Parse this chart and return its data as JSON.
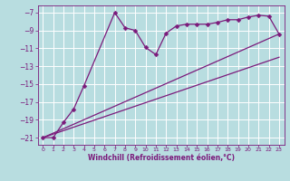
{
  "xlabel": "Windchill (Refroidissement éolien,°C)",
  "xlim": [
    -0.5,
    23.5
  ],
  "ylim": [
    -21.8,
    -6.2
  ],
  "xticks": [
    0,
    1,
    2,
    3,
    4,
    5,
    6,
    7,
    8,
    9,
    10,
    11,
    12,
    13,
    14,
    15,
    16,
    17,
    18,
    19,
    20,
    21,
    22,
    23
  ],
  "yticks": [
    -21,
    -19,
    -17,
    -15,
    -13,
    -11,
    -9,
    -7
  ],
  "bg_color": "#b8dde0",
  "grid_color": "#ffffff",
  "line_color": "#7b1a7b",
  "main_x": [
    0,
    1,
    2,
    3,
    4,
    7,
    8,
    9,
    10,
    11,
    12,
    13,
    14,
    15,
    16,
    17,
    18,
    19,
    20,
    21,
    22,
    23
  ],
  "main_y": [
    -21,
    -21,
    -19.3,
    -17.8,
    -15.2,
    -7.0,
    -8.7,
    -9.0,
    -10.9,
    -11.7,
    -9.3,
    -8.5,
    -8.3,
    -8.3,
    -8.3,
    -8.1,
    -7.8,
    -7.8,
    -7.5,
    -7.3,
    -7.4,
    -9.4
  ],
  "upper_line_x": [
    0,
    3,
    23
  ],
  "upper_line_y": [
    -21,
    -19.5,
    -9.4
  ],
  "lower_line_x": [
    0,
    23
  ],
  "lower_line_y": [
    -21,
    -12.0
  ],
  "markersize": 2.5,
  "linewidth": 0.9
}
